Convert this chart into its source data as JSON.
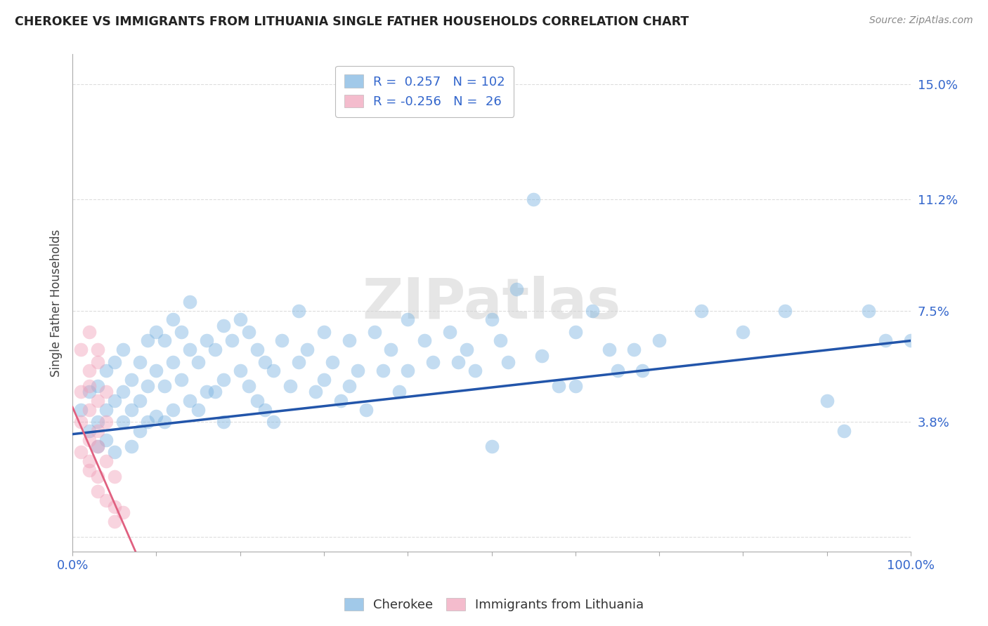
{
  "title": "CHEROKEE VS IMMIGRANTS FROM LITHUANIA SINGLE FATHER HOUSEHOLDS CORRELATION CHART",
  "source": "Source: ZipAtlas.com",
  "ylabel": "Single Father Households",
  "xlim": [
    0,
    1.0
  ],
  "ylim": [
    -0.005,
    0.16
  ],
  "yticks": [
    0.0,
    0.038,
    0.075,
    0.112,
    0.15
  ],
  "ytick_labels": [
    "",
    "3.8%",
    "7.5%",
    "11.2%",
    "15.0%"
  ],
  "xtick_positions": [
    0.0,
    0.1,
    0.2,
    0.3,
    0.4,
    0.5,
    0.6,
    0.7,
    0.8,
    0.9,
    1.0
  ],
  "xtick_labels": [
    "0.0%",
    "",
    "",
    "",
    "",
    "",
    "",
    "",
    "",
    "",
    "100.0%"
  ],
  "background_color": "#ffffff",
  "grid_color": "#dddddd",
  "watermark": "ZIPatlas",
  "blue_color": "#7ab3e0",
  "pink_color": "#f0a0b8",
  "blue_line_color": "#2255aa",
  "pink_line_color": "#e06080",
  "legend_text_color": "#3366cc",
  "tick_color": "#3366cc",
  "blue_scatter": [
    [
      0.01,
      0.042
    ],
    [
      0.02,
      0.048
    ],
    [
      0.02,
      0.035
    ],
    [
      0.03,
      0.05
    ],
    [
      0.03,
      0.038
    ],
    [
      0.03,
      0.03
    ],
    [
      0.04,
      0.055
    ],
    [
      0.04,
      0.042
    ],
    [
      0.04,
      0.032
    ],
    [
      0.05,
      0.058
    ],
    [
      0.05,
      0.045
    ],
    [
      0.05,
      0.028
    ],
    [
      0.06,
      0.062
    ],
    [
      0.06,
      0.048
    ],
    [
      0.06,
      0.038
    ],
    [
      0.07,
      0.052
    ],
    [
      0.07,
      0.042
    ],
    [
      0.07,
      0.03
    ],
    [
      0.08,
      0.058
    ],
    [
      0.08,
      0.045
    ],
    [
      0.08,
      0.035
    ],
    [
      0.09,
      0.065
    ],
    [
      0.09,
      0.05
    ],
    [
      0.09,
      0.038
    ],
    [
      0.1,
      0.068
    ],
    [
      0.1,
      0.055
    ],
    [
      0.1,
      0.04
    ],
    [
      0.11,
      0.065
    ],
    [
      0.11,
      0.05
    ],
    [
      0.11,
      0.038
    ],
    [
      0.12,
      0.072
    ],
    [
      0.12,
      0.058
    ],
    [
      0.12,
      0.042
    ],
    [
      0.13,
      0.068
    ],
    [
      0.13,
      0.052
    ],
    [
      0.14,
      0.078
    ],
    [
      0.14,
      0.062
    ],
    [
      0.14,
      0.045
    ],
    [
      0.15,
      0.058
    ],
    [
      0.15,
      0.042
    ],
    [
      0.16,
      0.065
    ],
    [
      0.16,
      0.048
    ],
    [
      0.17,
      0.062
    ],
    [
      0.17,
      0.048
    ],
    [
      0.18,
      0.07
    ],
    [
      0.18,
      0.052
    ],
    [
      0.18,
      0.038
    ],
    [
      0.19,
      0.065
    ],
    [
      0.2,
      0.072
    ],
    [
      0.2,
      0.055
    ],
    [
      0.21,
      0.068
    ],
    [
      0.21,
      0.05
    ],
    [
      0.22,
      0.062
    ],
    [
      0.22,
      0.045
    ],
    [
      0.23,
      0.058
    ],
    [
      0.23,
      0.042
    ],
    [
      0.24,
      0.055
    ],
    [
      0.24,
      0.038
    ],
    [
      0.25,
      0.065
    ],
    [
      0.26,
      0.05
    ],
    [
      0.27,
      0.075
    ],
    [
      0.27,
      0.058
    ],
    [
      0.28,
      0.062
    ],
    [
      0.29,
      0.048
    ],
    [
      0.3,
      0.068
    ],
    [
      0.3,
      0.052
    ],
    [
      0.31,
      0.058
    ],
    [
      0.32,
      0.045
    ],
    [
      0.33,
      0.065
    ],
    [
      0.33,
      0.05
    ],
    [
      0.34,
      0.055
    ],
    [
      0.35,
      0.042
    ],
    [
      0.36,
      0.068
    ],
    [
      0.37,
      0.055
    ],
    [
      0.38,
      0.062
    ],
    [
      0.39,
      0.048
    ],
    [
      0.4,
      0.072
    ],
    [
      0.4,
      0.055
    ],
    [
      0.42,
      0.065
    ],
    [
      0.43,
      0.058
    ],
    [
      0.45,
      0.068
    ],
    [
      0.46,
      0.058
    ],
    [
      0.47,
      0.062
    ],
    [
      0.48,
      0.055
    ],
    [
      0.5,
      0.03
    ],
    [
      0.5,
      0.072
    ],
    [
      0.51,
      0.065
    ],
    [
      0.52,
      0.058
    ],
    [
      0.53,
      0.082
    ],
    [
      0.55,
      0.112
    ],
    [
      0.56,
      0.06
    ],
    [
      0.58,
      0.05
    ],
    [
      0.6,
      0.068
    ],
    [
      0.6,
      0.05
    ],
    [
      0.62,
      0.075
    ],
    [
      0.64,
      0.062
    ],
    [
      0.65,
      0.055
    ],
    [
      0.67,
      0.062
    ],
    [
      0.68,
      0.055
    ],
    [
      0.7,
      0.065
    ],
    [
      0.75,
      0.075
    ],
    [
      0.8,
      0.068
    ],
    [
      0.85,
      0.075
    ],
    [
      0.9,
      0.045
    ],
    [
      0.92,
      0.035
    ],
    [
      0.95,
      0.075
    ],
    [
      0.97,
      0.065
    ],
    [
      1.0,
      0.065
    ]
  ],
  "pink_scatter": [
    [
      0.01,
      0.048
    ],
    [
      0.01,
      0.038
    ],
    [
      0.01,
      0.062
    ],
    [
      0.01,
      0.028
    ],
    [
      0.02,
      0.055
    ],
    [
      0.02,
      0.042
    ],
    [
      0.02,
      0.032
    ],
    [
      0.02,
      0.068
    ],
    [
      0.02,
      0.025
    ],
    [
      0.02,
      0.05
    ],
    [
      0.02,
      0.022
    ],
    [
      0.03,
      0.058
    ],
    [
      0.03,
      0.045
    ],
    [
      0.03,
      0.035
    ],
    [
      0.03,
      0.02
    ],
    [
      0.03,
      0.015
    ],
    [
      0.03,
      0.062
    ],
    [
      0.03,
      0.03
    ],
    [
      0.04,
      0.048
    ],
    [
      0.04,
      0.038
    ],
    [
      0.04,
      0.012
    ],
    [
      0.04,
      0.025
    ],
    [
      0.05,
      0.01
    ],
    [
      0.05,
      0.005
    ],
    [
      0.05,
      0.02
    ],
    [
      0.06,
      0.008
    ]
  ],
  "blue_line_x": [
    0.0,
    1.0
  ],
  "blue_line_y": [
    0.034,
    0.065
  ],
  "pink_line_x": [
    0.0,
    0.08
  ],
  "pink_line_y": [
    0.043,
    -0.008
  ]
}
